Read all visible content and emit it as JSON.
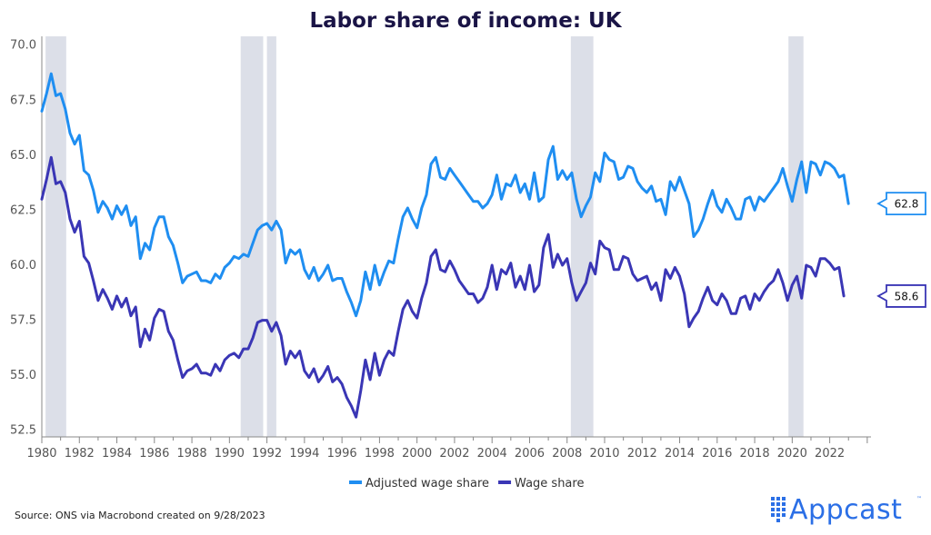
{
  "title": "Labor share of income: UK",
  "source": "Source: ONS via Macrobond created on 9/28/2023",
  "logo": {
    "text": "Appcast",
    "tm": "™"
  },
  "chart_data": {
    "type": "line",
    "xlim": [
      1980,
      2024.2
    ],
    "ylim": [
      52.2,
      70.4
    ],
    "yticks": [
      52.5,
      55.0,
      57.5,
      60.0,
      62.5,
      65.0,
      67.5,
      70.0
    ],
    "xticks": [
      1980,
      1982,
      1984,
      1986,
      1988,
      1990,
      1992,
      1994,
      1996,
      1998,
      2000,
      2002,
      2004,
      2006,
      2008,
      2010,
      2012,
      2014,
      2016,
      2018,
      2020,
      2022
    ],
    "recessions": [
      [
        1980.2,
        1981.3
      ],
      [
        1990.6,
        1991.8
      ],
      [
        1992.0,
        1992.5
      ],
      [
        2008.2,
        2009.4
      ],
      [
        2019.8,
        2020.6
      ]
    ],
    "legend": "bottom-center",
    "series": [
      {
        "name": "Adjusted wage share",
        "color": "#1f8ef1",
        "start": 1980.0,
        "step": 0.25,
        "last_label": "62.8",
        "values": [
          67.0,
          67.8,
          68.7,
          67.7,
          67.8,
          67.1,
          66.0,
          65.5,
          65.9,
          64.3,
          64.1,
          63.4,
          62.4,
          62.9,
          62.6,
          62.1,
          62.7,
          62.3,
          62.7,
          61.8,
          62.2,
          60.3,
          61.0,
          60.7,
          61.7,
          62.2,
          62.2,
          61.3,
          60.9,
          60.1,
          59.2,
          59.5,
          59.6,
          59.7,
          59.3,
          59.3,
          59.2,
          59.6,
          59.4,
          59.9,
          60.1,
          60.4,
          60.3,
          60.5,
          60.4,
          61.0,
          61.6,
          61.8,
          61.9,
          61.6,
          62.0,
          61.6,
          60.1,
          60.7,
          60.5,
          60.7,
          59.8,
          59.4,
          59.9,
          59.3,
          59.6,
          60.0,
          59.3,
          59.4,
          59.4,
          58.8,
          58.3,
          57.7,
          58.4,
          59.7,
          58.9,
          60.0,
          59.1,
          59.7,
          60.2,
          60.1,
          61.2,
          62.2,
          62.6,
          62.1,
          61.7,
          62.6,
          63.2,
          64.6,
          64.9,
          64.0,
          63.9,
          64.4,
          64.1,
          63.8,
          63.5,
          63.2,
          62.9,
          62.9,
          62.6,
          62.8,
          63.2,
          64.1,
          63.0,
          63.7,
          63.6,
          64.1,
          63.3,
          63.7,
          63.0,
          64.2,
          62.9,
          63.1,
          64.8,
          65.4,
          63.9,
          64.3,
          63.9,
          64.2,
          63.0,
          62.2,
          62.7,
          63.1,
          64.2,
          63.8,
          65.1,
          64.8,
          64.7,
          63.9,
          64.0,
          64.5,
          64.4,
          63.8,
          63.5,
          63.3,
          63.6,
          62.9,
          63.0,
          62.3,
          63.8,
          63.4,
          64.0,
          63.4,
          62.8,
          61.3,
          61.6,
          62.1,
          62.8,
          63.4,
          62.7,
          62.4,
          63.0,
          62.6,
          62.1,
          62.1,
          63.0,
          63.1,
          62.5,
          63.1,
          62.9,
          63.2,
          63.5,
          63.8,
          64.4,
          63.6,
          62.9,
          63.9,
          64.7,
          63.3,
          64.7,
          64.6,
          64.1,
          64.7,
          64.6,
          64.4,
          64.0,
          64.1,
          62.8
        ]
      },
      {
        "name": "Wage share",
        "color": "#3a36b5",
        "start": 1980.0,
        "step": 0.25,
        "last_label": "58.6",
        "values": [
          63.0,
          63.9,
          64.9,
          63.7,
          63.8,
          63.3,
          62.1,
          61.5,
          62.0,
          60.4,
          60.1,
          59.3,
          58.4,
          58.9,
          58.5,
          58.0,
          58.6,
          58.1,
          58.5,
          57.7,
          58.1,
          56.3,
          57.1,
          56.6,
          57.6,
          58.0,
          57.9,
          57.0,
          56.6,
          55.7,
          54.9,
          55.2,
          55.3,
          55.5,
          55.1,
          55.1,
          55.0,
          55.5,
          55.2,
          55.7,
          55.9,
          56.0,
          55.8,
          56.2,
          56.2,
          56.7,
          57.4,
          57.5,
          57.5,
          57.0,
          57.4,
          56.8,
          55.5,
          56.1,
          55.8,
          56.1,
          55.2,
          54.9,
          55.3,
          54.7,
          55.0,
          55.4,
          54.7,
          54.9,
          54.6,
          54.0,
          53.6,
          53.1,
          54.3,
          55.7,
          54.8,
          56.0,
          55.0,
          55.7,
          56.1,
          55.9,
          57.0,
          58.0,
          58.4,
          57.9,
          57.6,
          58.5,
          59.2,
          60.4,
          60.7,
          59.8,
          59.7,
          60.2,
          59.8,
          59.3,
          59.0,
          58.7,
          58.7,
          58.3,
          58.5,
          59.0,
          60.0,
          58.9,
          59.8,
          59.6,
          60.1,
          59.0,
          59.5,
          58.9,
          60.0,
          58.8,
          59.1,
          60.8,
          61.4,
          59.9,
          60.5,
          60.0,
          60.3,
          59.2,
          58.4,
          58.8,
          59.2,
          60.1,
          59.6,
          61.1,
          60.8,
          60.7,
          59.8,
          59.8,
          60.4,
          60.3,
          59.6,
          59.3,
          59.4,
          59.5,
          58.9,
          59.2,
          58.4,
          59.8,
          59.4,
          59.9,
          59.5,
          58.7,
          57.2,
          57.6,
          57.9,
          58.5,
          59.0,
          58.4,
          58.2,
          58.7,
          58.4,
          57.8,
          57.8,
          58.5,
          58.6,
          58.0,
          58.7,
          58.4,
          58.8,
          59.1,
          59.3,
          59.8,
          59.2,
          58.4,
          59.1,
          59.5,
          58.5,
          60.0,
          59.9,
          59.5,
          60.3,
          60.3,
          60.1,
          59.8,
          59.9,
          58.6
        ]
      }
    ]
  }
}
